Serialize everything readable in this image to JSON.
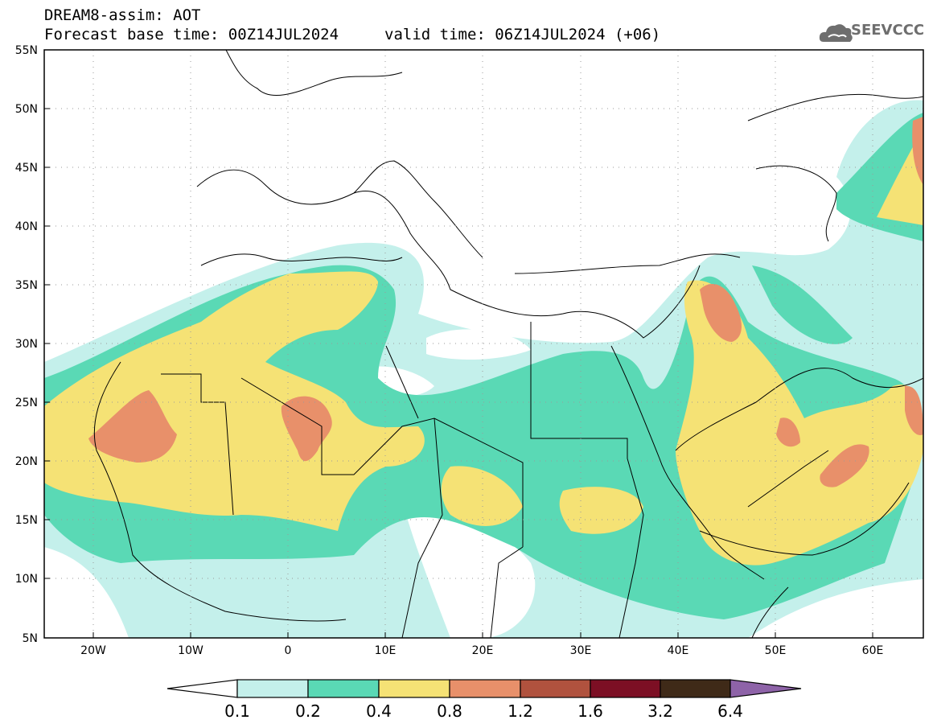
{
  "header": {
    "title": "DREAM8-assim: AOT",
    "base_time": "Forecast base time: 00Z14JUL2024",
    "valid_time": "valid time: 06Z14JUL2024 (+06)"
  },
  "logo": {
    "text": "SEEVCCC",
    "icon": "cloud-icon"
  },
  "map": {
    "lat_labels": [
      "55N",
      "50N",
      "45N",
      "40N",
      "35N",
      "30N",
      "25N",
      "20N",
      "15N",
      "10N",
      "5N"
    ],
    "lon_labels": [
      "20W",
      "10W",
      "0",
      "10E",
      "20E",
      "30E",
      "40E",
      "50E",
      "60E"
    ],
    "lat_range": [
      5,
      55
    ],
    "lon_range": [
      -25,
      65
    ],
    "grid": "dotted"
  },
  "colorbar": {
    "labels": [
      "0.1",
      "0.2",
      "0.4",
      "0.8",
      "1.2",
      "1.6",
      "3.2",
      "6.4"
    ],
    "colors": [
      "#ffffff",
      "#c4f0eb",
      "#5ad9b5",
      "#f5e275",
      "#e8906a",
      "#b0523e",
      "#7c0f24",
      "#3f2a18",
      "#8e63a8"
    ]
  },
  "colors": {
    "level_1": "#c4f0eb",
    "level_2": "#5ad9b5",
    "level_3": "#f5e275",
    "level_4": "#e8906a"
  }
}
